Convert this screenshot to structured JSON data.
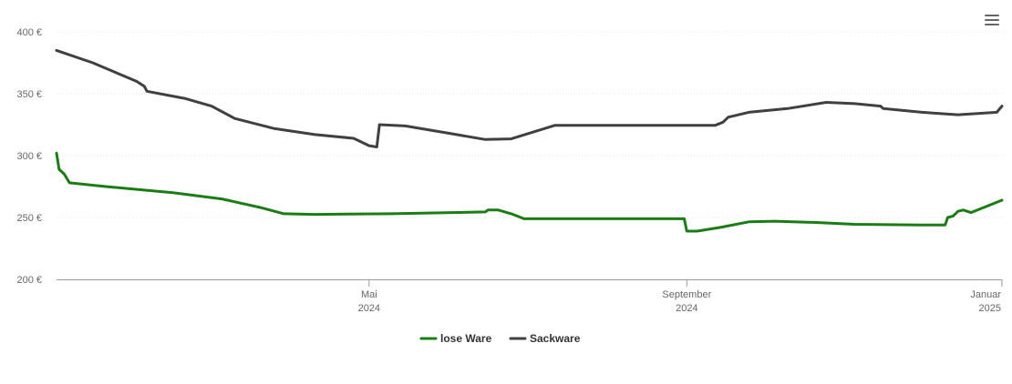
{
  "menu": {
    "icon": "hamburger-menu-icon"
  },
  "chart_data": {
    "type": "line",
    "title": "",
    "xlabel": "",
    "ylabel": "",
    "ylim": [
      200,
      400
    ],
    "yticks": [
      {
        "value": 200,
        "label": "200 €"
      },
      {
        "value": 250,
        "label": "250 €"
      },
      {
        "value": 300,
        "label": "300 €"
      },
      {
        "value": 350,
        "label": "350 €"
      },
      {
        "value": 400,
        "label": "400 €"
      }
    ],
    "xlim": [
      "2024-01-01",
      "2025-01-01"
    ],
    "xticks": [
      {
        "date": "2024-05-01",
        "line1": "Mai",
        "line2": "2024"
      },
      {
        "date": "2024-09-01",
        "line1": "September",
        "line2": "2024"
      },
      {
        "date": "2025-01-01",
        "line1": "Januar",
        "line2": "2025"
      }
    ],
    "grid": true,
    "legend_position": "bottom-center",
    "series": [
      {
        "name": "lose Ware",
        "color": "#1a7d13",
        "points": [
          [
            "2024-01-01",
            302
          ],
          [
            "2024-01-02",
            289
          ],
          [
            "2024-01-04",
            285
          ],
          [
            "2024-01-06",
            278
          ],
          [
            "2024-01-20",
            275
          ],
          [
            "2024-02-15",
            270
          ],
          [
            "2024-03-05",
            265
          ],
          [
            "2024-03-20",
            258
          ],
          [
            "2024-03-29",
            253
          ],
          [
            "2024-04-10",
            252.5
          ],
          [
            "2024-05-10",
            253
          ],
          [
            "2024-06-15",
            254.5
          ],
          [
            "2024-06-16",
            256
          ],
          [
            "2024-06-20",
            256
          ],
          [
            "2024-06-25",
            253
          ],
          [
            "2024-06-30",
            249
          ],
          [
            "2024-08-15",
            249
          ],
          [
            "2024-08-31",
            249
          ],
          [
            "2024-09-01",
            239
          ],
          [
            "2024-09-05",
            239
          ],
          [
            "2024-09-14",
            242
          ],
          [
            "2024-09-25",
            246.5
          ],
          [
            "2024-10-05",
            247
          ],
          [
            "2024-10-20",
            246
          ],
          [
            "2024-11-05",
            244.5
          ],
          [
            "2024-12-01",
            244
          ],
          [
            "2024-12-10",
            244
          ],
          [
            "2024-12-11",
            250
          ],
          [
            "2024-12-13",
            251
          ],
          [
            "2024-12-15",
            255
          ],
          [
            "2024-12-17",
            256
          ],
          [
            "2024-12-20",
            254
          ],
          [
            "2025-01-01",
            264
          ]
        ]
      },
      {
        "name": "Sackware",
        "color": "#404040",
        "points": [
          [
            "2024-01-01",
            385
          ],
          [
            "2024-01-15",
            375
          ],
          [
            "2024-02-01",
            360
          ],
          [
            "2024-02-04",
            356
          ],
          [
            "2024-02-05",
            352
          ],
          [
            "2024-02-20",
            346
          ],
          [
            "2024-03-01",
            340
          ],
          [
            "2024-03-10",
            330
          ],
          [
            "2024-03-25",
            322
          ],
          [
            "2024-04-10",
            317
          ],
          [
            "2024-04-25",
            314
          ],
          [
            "2024-04-28",
            311
          ],
          [
            "2024-05-01",
            308
          ],
          [
            "2024-05-04",
            307
          ],
          [
            "2024-05-05",
            325
          ],
          [
            "2024-05-15",
            324
          ],
          [
            "2024-06-01",
            318
          ],
          [
            "2024-06-15",
            313
          ],
          [
            "2024-06-25",
            313.5
          ],
          [
            "2024-07-05",
            320
          ],
          [
            "2024-07-12",
            324.5
          ],
          [
            "2024-08-15",
            324.5
          ],
          [
            "2024-09-01",
            324.5
          ],
          [
            "2024-09-12",
            324.5
          ],
          [
            "2024-09-15",
            327
          ],
          [
            "2024-09-17",
            331
          ],
          [
            "2024-09-25",
            335
          ],
          [
            "2024-10-10",
            338
          ],
          [
            "2024-10-25",
            343
          ],
          [
            "2024-11-05",
            342
          ],
          [
            "2024-11-15",
            340
          ],
          [
            "2024-11-16",
            338
          ],
          [
            "2024-12-01",
            335
          ],
          [
            "2024-12-15",
            333
          ],
          [
            "2024-12-30",
            335
          ],
          [
            "2025-01-01",
            340
          ]
        ]
      }
    ]
  }
}
